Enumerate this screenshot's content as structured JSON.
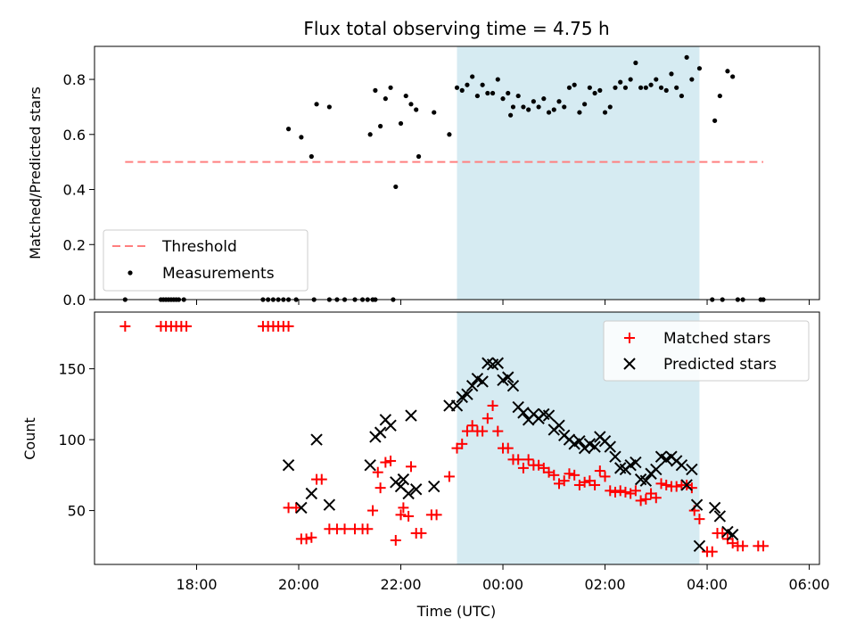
{
  "chart_data": {
    "title": "Flux total observing time = 4.75 h",
    "xlabel": "Time (UTC)",
    "x_unit": "hours (UTC, values >= 24 are after midnight)",
    "xlim": [
      16.0,
      30.2
    ],
    "xticks": [
      {
        "value": 18,
        "label": "18:00"
      },
      {
        "value": 20,
        "label": "20:00"
      },
      {
        "value": 22,
        "label": "22:00"
      },
      {
        "value": 24,
        "label": "00:00"
      },
      {
        "value": 26,
        "label": "02:00"
      },
      {
        "value": 28,
        "label": "04:00"
      },
      {
        "value": 30,
        "label": "06:00"
      }
    ],
    "observing_window": {
      "start": 23.1,
      "end": 27.85,
      "color": "#add8e6"
    },
    "top": {
      "type": "scatter",
      "ylabel": "Matched/Predicted stars",
      "ylim": [
        0.0,
        0.92
      ],
      "yticks": [
        0.0,
        0.2,
        0.4,
        0.6,
        0.8
      ],
      "yticklabels": [
        "0.0",
        "0.2",
        "0.4",
        "0.6",
        "0.8"
      ],
      "threshold": {
        "name": "Threshold",
        "value": 0.5,
        "x_range": [
          16.6,
          29.1
        ],
        "color": "#ff7f7f"
      },
      "measurements_name": "Measurements",
      "legend": {
        "location": "lower-left"
      },
      "points": [
        [
          16.6,
          0
        ],
        [
          17.3,
          0
        ],
        [
          17.35,
          0
        ],
        [
          17.4,
          0
        ],
        [
          17.45,
          0
        ],
        [
          17.5,
          0
        ],
        [
          17.55,
          0
        ],
        [
          17.6,
          0
        ],
        [
          17.65,
          0
        ],
        [
          17.75,
          0
        ],
        [
          19.3,
          0
        ],
        [
          19.4,
          0
        ],
        [
          19.5,
          0
        ],
        [
          19.6,
          0
        ],
        [
          19.7,
          0
        ],
        [
          19.8,
          0
        ],
        [
          19.95,
          0
        ],
        [
          20.3,
          0
        ],
        [
          20.6,
          0
        ],
        [
          20.75,
          0
        ],
        [
          20.9,
          0
        ],
        [
          21.1,
          0
        ],
        [
          21.25,
          0
        ],
        [
          21.35,
          0
        ],
        [
          21.45,
          0
        ],
        [
          21.5,
          0
        ],
        [
          21.85,
          0
        ],
        [
          19.8,
          0.62
        ],
        [
          20.05,
          0.59
        ],
        [
          20.25,
          0.52
        ],
        [
          20.35,
          0.71
        ],
        [
          20.6,
          0.7
        ],
        [
          21.4,
          0.6
        ],
        [
          21.5,
          0.76
        ],
        [
          21.6,
          0.63
        ],
        [
          21.7,
          0.73
        ],
        [
          21.8,
          0.77
        ],
        [
          21.9,
          0.41
        ],
        [
          22.0,
          0.64
        ],
        [
          22.1,
          0.74
        ],
        [
          22.2,
          0.71
        ],
        [
          22.3,
          0.69
        ],
        [
          22.35,
          0.52
        ],
        [
          22.65,
          0.68
        ],
        [
          22.95,
          0.6
        ],
        [
          23.1,
          0.77
        ],
        [
          23.2,
          0.76
        ],
        [
          23.3,
          0.78
        ],
        [
          23.4,
          0.81
        ],
        [
          23.5,
          0.74
        ],
        [
          23.6,
          0.78
        ],
        [
          23.7,
          0.75
        ],
        [
          23.8,
          0.75
        ],
        [
          23.9,
          0.8
        ],
        [
          24.0,
          0.73
        ],
        [
          24.1,
          0.75
        ],
        [
          24.15,
          0.67
        ],
        [
          24.2,
          0.7
        ],
        [
          24.3,
          0.74
        ],
        [
          24.4,
          0.7
        ],
        [
          24.5,
          0.69
        ],
        [
          24.6,
          0.72
        ],
        [
          24.7,
          0.7
        ],
        [
          24.8,
          0.73
        ],
        [
          24.9,
          0.68
        ],
        [
          25.0,
          0.69
        ],
        [
          25.1,
          0.72
        ],
        [
          25.2,
          0.7
        ],
        [
          25.3,
          0.77
        ],
        [
          25.4,
          0.78
        ],
        [
          25.5,
          0.68
        ],
        [
          25.6,
          0.71
        ],
        [
          25.7,
          0.77
        ],
        [
          25.8,
          0.75
        ],
        [
          25.9,
          0.76
        ],
        [
          26.0,
          0.68
        ],
        [
          26.1,
          0.7
        ],
        [
          26.2,
          0.77
        ],
        [
          26.3,
          0.79
        ],
        [
          26.4,
          0.77
        ],
        [
          26.5,
          0.8
        ],
        [
          26.6,
          0.86
        ],
        [
          26.7,
          0.77
        ],
        [
          26.8,
          0.77
        ],
        [
          26.9,
          0.78
        ],
        [
          27.0,
          0.8
        ],
        [
          27.1,
          0.77
        ],
        [
          27.2,
          0.76
        ],
        [
          27.3,
          0.82
        ],
        [
          27.4,
          0.77
        ],
        [
          27.5,
          0.74
        ],
        [
          27.6,
          0.88
        ],
        [
          27.7,
          0.8
        ],
        [
          27.85,
          0.84
        ],
        [
          28.15,
          0.65
        ],
        [
          28.25,
          0.74
        ],
        [
          28.4,
          0.83
        ],
        [
          28.5,
          0.81
        ],
        [
          28.1,
          0
        ],
        [
          28.3,
          0
        ],
        [
          28.6,
          0
        ],
        [
          28.7,
          0
        ],
        [
          29.05,
          0
        ],
        [
          29.1,
          0
        ]
      ]
    },
    "bottom": {
      "type": "scatter",
      "ylabel": "Count",
      "ylim": [
        12,
        190
      ],
      "yticks": [
        50,
        100,
        150
      ],
      "yticklabels": [
        "50",
        "100",
        "150"
      ],
      "legend": {
        "location": "upper-right"
      },
      "series": [
        {
          "name": "Matched stars",
          "marker": "+",
          "color": "#ff0000",
          "points": [
            [
              16.6,
              180
            ],
            [
              17.3,
              180
            ],
            [
              17.4,
              180
            ],
            [
              17.5,
              180
            ],
            [
              17.6,
              180
            ],
            [
              17.7,
              180
            ],
            [
              17.8,
              180
            ],
            [
              19.3,
              180
            ],
            [
              19.4,
              180
            ],
            [
              19.5,
              180
            ],
            [
              19.6,
              180
            ],
            [
              19.7,
              180
            ],
            [
              19.8,
              180
            ],
            [
              19.8,
              52
            ],
            [
              19.95,
              52
            ],
            [
              20.05,
              30
            ],
            [
              20.15,
              30
            ],
            [
              20.25,
              31
            ],
            [
              20.35,
              72
            ],
            [
              20.45,
              72
            ],
            [
              20.6,
              37
            ],
            [
              20.75,
              37
            ],
            [
              20.9,
              37
            ],
            [
              21.1,
              37
            ],
            [
              21.25,
              37
            ],
            [
              21.35,
              37
            ],
            [
              21.45,
              50
            ],
            [
              21.55,
              77
            ],
            [
              21.6,
              66
            ],
            [
              21.7,
              84
            ],
            [
              21.8,
              85
            ],
            [
              21.9,
              29
            ],
            [
              22.0,
              47
            ],
            [
              22.05,
              52
            ],
            [
              22.15,
              46
            ],
            [
              22.2,
              81
            ],
            [
              22.3,
              34
            ],
            [
              22.4,
              34
            ],
            [
              22.6,
              47
            ],
            [
              22.7,
              47
            ],
            [
              22.95,
              74
            ],
            [
              23.1,
              94
            ],
            [
              23.2,
              97
            ],
            [
              23.3,
              106
            ],
            [
              23.4,
              110
            ],
            [
              23.5,
              106
            ],
            [
              23.6,
              106
            ],
            [
              23.7,
              115
            ],
            [
              23.8,
              124
            ],
            [
              23.9,
              106
            ],
            [
              24.0,
              94
            ],
            [
              24.1,
              94
            ],
            [
              24.2,
              86
            ],
            [
              24.3,
              86
            ],
            [
              24.4,
              80
            ],
            [
              24.5,
              86
            ],
            [
              24.6,
              82
            ],
            [
              24.7,
              82
            ],
            [
              24.8,
              80
            ],
            [
              24.9,
              77
            ],
            [
              25.0,
              75
            ],
            [
              25.1,
              69
            ],
            [
              25.2,
              71
            ],
            [
              25.3,
              76
            ],
            [
              25.4,
              75
            ],
            [
              25.5,
              68
            ],
            [
              25.6,
              70
            ],
            [
              25.7,
              71
            ],
            [
              25.8,
              68
            ],
            [
              25.9,
              78
            ],
            [
              26.0,
              74
            ],
            [
              26.1,
              64
            ],
            [
              26.2,
              63
            ],
            [
              26.3,
              64
            ],
            [
              26.4,
              63
            ],
            [
              26.5,
              62
            ],
            [
              26.6,
              64
            ],
            [
              26.7,
              57
            ],
            [
              26.8,
              58
            ],
            [
              26.9,
              62
            ],
            [
              27.0,
              59
            ],
            [
              27.1,
              69
            ],
            [
              27.2,
              68
            ],
            [
              27.3,
              67
            ],
            [
              27.4,
              67
            ],
            [
              27.5,
              68
            ],
            [
              27.6,
              68
            ],
            [
              27.7,
              66
            ],
            [
              27.75,
              50
            ],
            [
              27.85,
              44
            ],
            [
              28.0,
              21
            ],
            [
              28.1,
              21
            ],
            [
              28.2,
              34
            ],
            [
              28.3,
              34
            ],
            [
              28.4,
              30
            ],
            [
              28.5,
              27
            ],
            [
              28.6,
              25
            ],
            [
              28.7,
              25
            ],
            [
              29.0,
              25
            ],
            [
              29.1,
              25
            ]
          ]
        },
        {
          "name": "Predicted stars",
          "marker": "x",
          "color": "#000000",
          "points": [
            [
              19.8,
              82
            ],
            [
              20.05,
              52
            ],
            [
              20.25,
              62
            ],
            [
              20.35,
              100
            ],
            [
              20.6,
              54
            ],
            [
              21.4,
              82
            ],
            [
              21.5,
              102
            ],
            [
              21.6,
              105
            ],
            [
              21.7,
              114
            ],
            [
              21.8,
              110
            ],
            [
              21.9,
              70
            ],
            [
              22.0,
              67
            ],
            [
              22.05,
              72
            ],
            [
              22.15,
              62
            ],
            [
              22.2,
              117
            ],
            [
              22.3,
              65
            ],
            [
              22.65,
              67
            ],
            [
              22.95,
              124
            ],
            [
              23.1,
              124
            ],
            [
              23.2,
              130
            ],
            [
              23.3,
              132
            ],
            [
              23.4,
              138
            ],
            [
              23.5,
              143
            ],
            [
              23.6,
              141
            ],
            [
              23.7,
              154
            ],
            [
              23.8,
              153
            ],
            [
              23.9,
              154
            ],
            [
              24.0,
              142
            ],
            [
              24.1,
              144
            ],
            [
              24.2,
              138
            ],
            [
              24.3,
              123
            ],
            [
              24.4,
              119
            ],
            [
              24.5,
              114
            ],
            [
              24.6,
              118
            ],
            [
              24.7,
              115
            ],
            [
              24.8,
              118
            ],
            [
              24.9,
              117
            ],
            [
              25.0,
              107
            ],
            [
              25.1,
              110
            ],
            [
              25.2,
              103
            ],
            [
              25.3,
              100
            ],
            [
              25.4,
              97
            ],
            [
              25.5,
              99
            ],
            [
              25.6,
              94
            ],
            [
              25.7,
              97
            ],
            [
              25.8,
              95
            ],
            [
              25.9,
              102
            ],
            [
              26.0,
              99
            ],
            [
              26.1,
              95
            ],
            [
              26.2,
              88
            ],
            [
              26.3,
              80
            ],
            [
              26.4,
              79
            ],
            [
              26.5,
              82
            ],
            [
              26.6,
              84
            ],
            [
              26.7,
              72
            ],
            [
              26.8,
              71
            ],
            [
              26.9,
              76
            ],
            [
              27.0,
              79
            ],
            [
              27.1,
              88
            ],
            [
              27.2,
              86
            ],
            [
              27.3,
              88
            ],
            [
              27.4,
              85
            ],
            [
              27.5,
              82
            ],
            [
              27.6,
              68
            ],
            [
              27.7,
              79
            ],
            [
              27.8,
              54
            ],
            [
              27.85,
              25
            ],
            [
              28.15,
              52
            ],
            [
              28.25,
              46
            ],
            [
              28.4,
              35
            ],
            [
              28.5,
              33
            ]
          ]
        }
      ]
    }
  }
}
